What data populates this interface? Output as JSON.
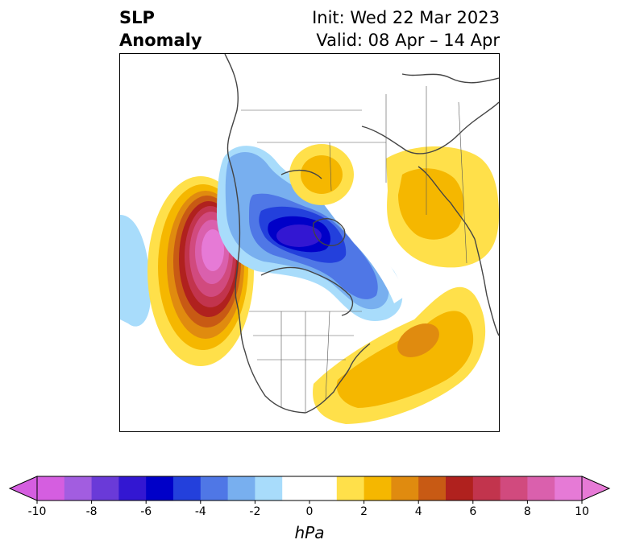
{
  "header": {
    "title_line1": "SLP",
    "title_line2": "Anomaly",
    "init_text": "Init: Wed 22 Mar 2023",
    "valid_text": "Valid: 08 Apr – 14 Apr"
  },
  "map": {
    "projection": "polar stereographic",
    "region": "North America / Arctic / North Atlantic",
    "features": {
      "positive_anomalies": [
        "northeast Pacific off western Canada",
        "North Atlantic east of US",
        "northern Siberia / Kara Sea",
        "Scandinavia / northwest Russia"
      ],
      "negative_anomalies": [
        "Arctic Ocean / Canadian Archipelago",
        "Greenland / Baffin Bay",
        "Pacific southwest edge"
      ]
    }
  },
  "colorbar": {
    "unit": "hPa",
    "ticks": [
      "-10",
      "-8",
      "-6",
      "-4",
      "-2",
      "0",
      "2",
      "4",
      "6",
      "8",
      "10"
    ],
    "colors": [
      "#d55ee0",
      "#a25de0",
      "#6a3ad8",
      "#3317d2",
      "#0000c8",
      "#2340dc",
      "#4f77e6",
      "#78afef",
      "#a8dcfb",
      "#ffffff",
      "#ffffff",
      "#ffe04a",
      "#f5b700",
      "#e08b0f",
      "#c85a14",
      "#b0211e",
      "#c2344d",
      "#d14a7e",
      "#da60ad",
      "#e67ad6"
    ]
  }
}
